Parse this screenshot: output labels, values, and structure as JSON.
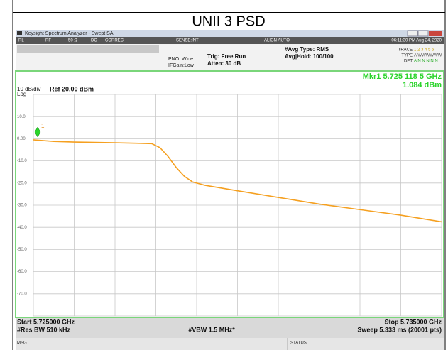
{
  "caption": "UNII 3 PSD",
  "screen": {
    "window_title": "Keysight Spectrum Analyzer - Swept SA",
    "status_row": [
      "RL",
      "RF",
      "50 Ω",
      "DC",
      "CORREC",
      "SENSE:INT",
      "ALIGN AUTO",
      "06:11:30 PM Aug 24, 2020"
    ],
    "settings": {
      "pno": "PNO: Wide",
      "ifgain": "IFGain:Low",
      "trig": "Trig: Free Run",
      "atten": "Atten: 30 dB",
      "avg_type": "#Avg Type: RMS",
      "avg_hold": "Avg|Hold: 100/100",
      "trace": "TRACE",
      "trace_nums": "1 2 3 4 5 6",
      "type": "TYPE",
      "type_val": "A WWWWWW",
      "det": "DET",
      "det_val": "A N N N N N"
    },
    "marker": {
      "label": "Mkr1 5.725 118 5 GHz",
      "value": "1.084 dBm",
      "id": "1"
    },
    "scale": "10 dB/div",
    "log": "Log",
    "ref": "Ref 20.00 dBm",
    "y_labels": [
      "10.0",
      "0.00",
      "-10.0",
      "-20.0",
      "-30.0",
      "-40.0",
      "-50.0",
      "-60.0",
      "-70.0"
    ],
    "start": "Start 5.725000 GHz",
    "rbw": "#Res BW 510 kHz",
    "vbw": "#VBW 1.5 MHz*",
    "stop": "Stop 5.735000 GHz",
    "sweep": "Sweep  5.333 ms (20001 pts)",
    "msg": "MSG",
    "status": "STATUS",
    "trace": {
      "xlim": [
        5.725,
        5.735
      ],
      "ylim": [
        -80,
        20
      ],
      "x": [
        5.725,
        5.7255,
        5.726,
        5.727,
        5.7275,
        5.7279,
        5.7281,
        5.7283,
        5.7285,
        5.7287,
        5.7289,
        5.7292,
        5.73,
        5.731,
        5.732,
        5.733,
        5.734,
        5.735
      ],
      "values": [
        -0.5,
        -1.2,
        -1.5,
        -1.8,
        -2,
        -2.2,
        -4,
        -8,
        -13,
        -17,
        -19.5,
        -21,
        -23.5,
        -26.5,
        -29.5,
        -32,
        -34.5,
        -37.5
      ]
    }
  }
}
